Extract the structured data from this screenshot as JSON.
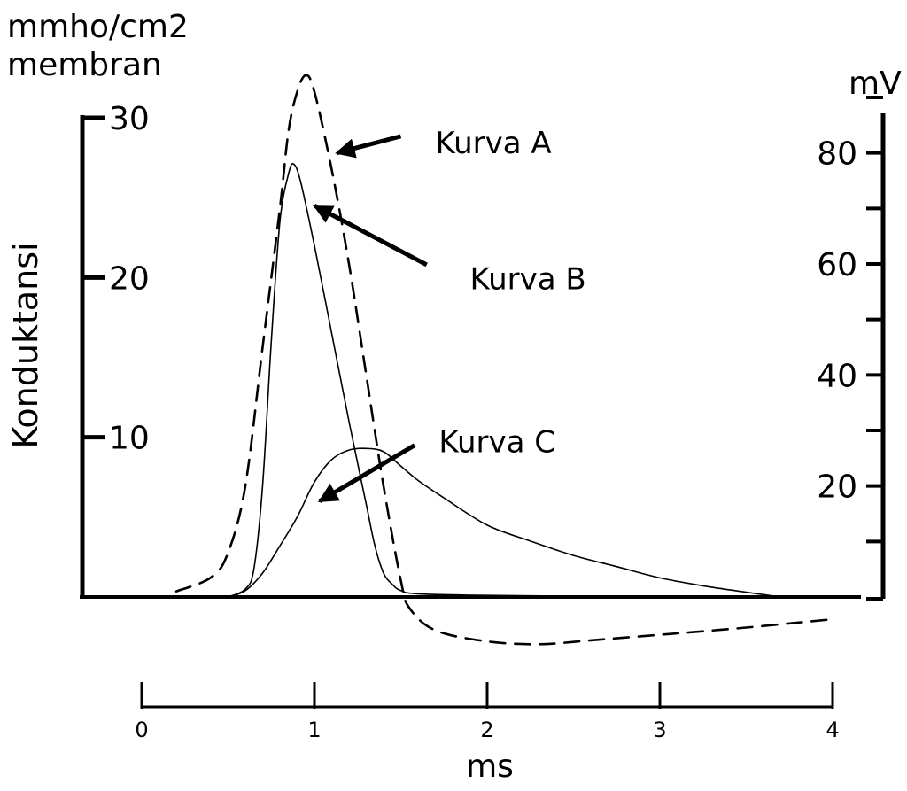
{
  "chart_data": {
    "type": "line",
    "title": "",
    "left_axis": {
      "label": "Konduktansi",
      "unit_label_1": "mmho/cm2",
      "unit_label_2": "membran",
      "ylim": [
        0,
        30
      ],
      "ticks": [
        10,
        20,
        30
      ]
    },
    "right_axis": {
      "unit_label": "mV",
      "ylim": [
        0,
        90
      ],
      "major_ticks": [
        20,
        40,
        60,
        80
      ],
      "minor_ticks": [
        10,
        30,
        50,
        70,
        90
      ]
    },
    "x_axis": {
      "label": "ms",
      "xlim": [
        0,
        4
      ],
      "ticks": [
        0,
        1,
        2,
        3,
        4
      ],
      "tick_labels": [
        "0",
        "1",
        "2",
        "3",
        "4"
      ]
    },
    "series": [
      {
        "name": "Kurva A",
        "axis": "mV",
        "style": "dashed",
        "points": [
          [
            0.2,
            1
          ],
          [
            0.4,
            3.5
          ],
          [
            0.5,
            8
          ],
          [
            0.6,
            20
          ],
          [
            0.7,
            45
          ],
          [
            0.8,
            70
          ],
          [
            0.85,
            84
          ],
          [
            0.9,
            91
          ],
          [
            0.95,
            94
          ],
          [
            1.0,
            91
          ],
          [
            1.1,
            77
          ],
          [
            1.2,
            60
          ],
          [
            1.3,
            40
          ],
          [
            1.4,
            20
          ],
          [
            1.5,
            3
          ],
          [
            1.55,
            -2
          ],
          [
            1.7,
            -6
          ],
          [
            2.0,
            -8
          ],
          [
            2.3,
            -8.5
          ],
          [
            2.6,
            -7.8
          ],
          [
            3.0,
            -6.8
          ],
          [
            3.5,
            -5.5
          ],
          [
            4.0,
            -4
          ]
        ]
      },
      {
        "name": "Kurva B",
        "axis": "mmho",
        "style": "solid",
        "points": [
          [
            0.5,
            0
          ],
          [
            0.6,
            0.5
          ],
          [
            0.65,
            1.8
          ],
          [
            0.7,
            7
          ],
          [
            0.75,
            16
          ],
          [
            0.8,
            23.5
          ],
          [
            0.85,
            26.5
          ],
          [
            0.88,
            27.1
          ],
          [
            0.92,
            26
          ],
          [
            1.0,
            22
          ],
          [
            1.1,
            16.5
          ],
          [
            1.2,
            11
          ],
          [
            1.3,
            5.8
          ],
          [
            1.35,
            3.2
          ],
          [
            1.4,
            1.5
          ],
          [
            1.45,
            0.8
          ],
          [
            1.5,
            0.4
          ],
          [
            1.6,
            0.2
          ],
          [
            2.0,
            0.1
          ],
          [
            3.0,
            0
          ]
        ]
      },
      {
        "name": "Kurva C",
        "axis": "mmho",
        "style": "solid",
        "points": [
          [
            0.5,
            0
          ],
          [
            0.6,
            0.4
          ],
          [
            0.7,
            1.5
          ],
          [
            0.8,
            3.2
          ],
          [
            0.9,
            5
          ],
          [
            1.0,
            7.2
          ],
          [
            1.1,
            8.6
          ],
          [
            1.2,
            9.2
          ],
          [
            1.3,
            9.3
          ],
          [
            1.4,
            9.1
          ],
          [
            1.5,
            8.2
          ],
          [
            1.6,
            7.3
          ],
          [
            1.75,
            6.2
          ],
          [
            2.0,
            4.5
          ],
          [
            2.25,
            3.5
          ],
          [
            2.5,
            2.6
          ],
          [
            2.75,
            1.9
          ],
          [
            3.0,
            1.2
          ],
          [
            3.25,
            0.7
          ],
          [
            3.5,
            0.3
          ],
          [
            3.7,
            0
          ]
        ]
      }
    ],
    "annotations": [
      {
        "text": "Kurva A",
        "series": "Kurva A",
        "target": [
          1.13,
          80
        ],
        "tail": [
          1.5,
          83
        ],
        "label_pos": [
          1.7,
          82
        ]
      },
      {
        "text": "Kurva B",
        "series": "Kurva B",
        "target": [
          1.0,
          24.5
        ],
        "tail": [
          1.65,
          20.8
        ],
        "label_pos": [
          1.9,
          20
        ]
      },
      {
        "text": "Kurva C",
        "series": "Kurva C",
        "target": [
          1.03,
          6.0
        ],
        "tail": [
          1.58,
          9.5
        ],
        "label_pos": [
          1.72,
          9.8
        ]
      }
    ]
  }
}
